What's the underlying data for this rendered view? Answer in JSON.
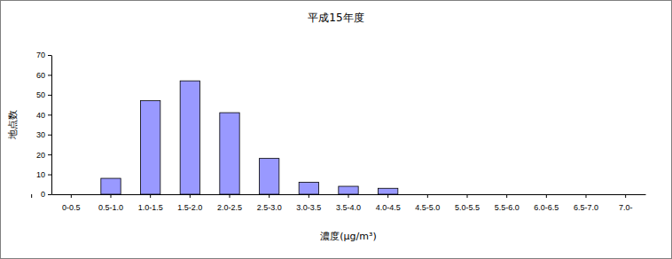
{
  "chart_data": {
    "type": "bar",
    "title": "平成15年度",
    "x_label": "濃度(μg/m³)",
    "y_label": "地点数",
    "categories": [
      "0-0.5",
      "0.5-1.0",
      "1.0-1.5",
      "1.5-2.0",
      "2.0-2.5",
      "2.5-3.0",
      "3.0-3.5",
      "3.5-4.0",
      "4.0-4.5",
      "4.5-5.0",
      "5.0-5.5",
      "5.5-6.0",
      "6.0-6.5",
      "6.5-7.0",
      "7.0-"
    ],
    "values": [
      0,
      8,
      47,
      57,
      41,
      18,
      6,
      4,
      3,
      0,
      0,
      0,
      0,
      0,
      0
    ],
    "color": "#9999ff",
    "ylim": [
      0,
      70
    ],
    "yticks": [
      0,
      10,
      20,
      30,
      40,
      50,
      60,
      70
    ],
    "grid": false
  }
}
